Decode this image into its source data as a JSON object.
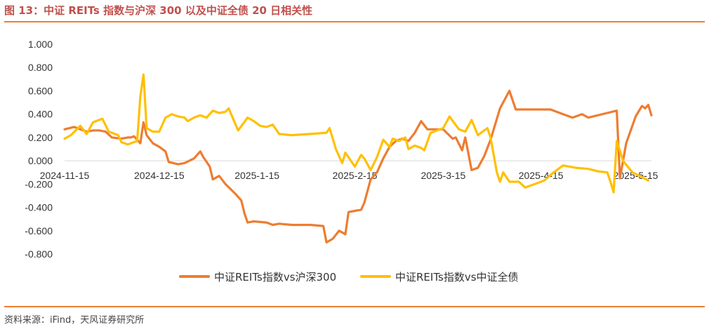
{
  "figure": {
    "title": "图 13：中证 REITs 指数与沪深 300 以及中证全债 20 日相关性",
    "source": "资料来源：iFind，天风证券研究所"
  },
  "colors": {
    "accent": "#ed7d31",
    "series1": "#ed7d31",
    "series2": "#ffc000",
    "title": "#c0504d"
  },
  "chart_data": {
    "type": "line",
    "title": "",
    "xlabel": "",
    "ylabel": "",
    "ylim": [
      -0.8,
      1.0
    ],
    "yticks": [
      "1.000",
      "0.800",
      "0.600",
      "0.400",
      "0.200",
      "0.000",
      "-0.200",
      "-0.400",
      "-0.600",
      "-0.800"
    ],
    "x_range": [
      "2024-11-15",
      "2025-05-20"
    ],
    "xticks": [
      "2024-11-15",
      "2024-12-15",
      "2025-1-15",
      "2025-2-15",
      "2025-3-15",
      "2025-4-15",
      "2025-5-15"
    ],
    "grid": false,
    "legend": "bottom",
    "series": [
      {
        "name": "中证REITs指数vs沪深300",
        "color": "#ed7d31",
        "points": [
          [
            "2024-11-15",
            0.27
          ],
          [
            "2024-11-18",
            0.29
          ],
          [
            "2024-11-20",
            0.27
          ],
          [
            "2024-11-22",
            0.25
          ],
          [
            "2024-11-24",
            0.26
          ],
          [
            "2024-11-26",
            0.26
          ],
          [
            "2024-11-28",
            0.25
          ],
          [
            "2024-11-30",
            0.2
          ],
          [
            "2024-12-03",
            0.19
          ],
          [
            "2024-12-05",
            0.2
          ],
          [
            "2024-12-06",
            0.2
          ],
          [
            "2024-12-07",
            0.21
          ],
          [
            "2024-12-09",
            0.15
          ],
          [
            "2024-12-10",
            0.33
          ],
          [
            "2024-12-11",
            0.22
          ],
          [
            "2024-12-13",
            0.15
          ],
          [
            "2024-12-15",
            0.12
          ],
          [
            "2024-12-17",
            0.08
          ],
          [
            "2024-12-18",
            -0.01
          ],
          [
            "2024-12-21",
            -0.03
          ],
          [
            "2024-12-23",
            -0.02
          ],
          [
            "2024-12-26",
            0.02
          ],
          [
            "2024-12-28",
            0.08
          ],
          [
            "2024-12-29",
            0.03
          ],
          [
            "2024-12-31",
            -0.05
          ],
          [
            "2025-01-01",
            -0.16
          ],
          [
            "2025-01-03",
            -0.13
          ],
          [
            "2025-01-05",
            -0.2
          ],
          [
            "2025-01-08",
            -0.28
          ],
          [
            "2025-01-10",
            -0.34
          ],
          [
            "2025-01-11",
            -0.45
          ],
          [
            "2025-01-12",
            -0.53
          ],
          [
            "2025-01-14",
            -0.52
          ],
          [
            "2025-01-18",
            -0.53
          ],
          [
            "2025-01-20",
            -0.55
          ],
          [
            "2025-01-22",
            -0.54
          ],
          [
            "2025-01-26",
            -0.55
          ],
          [
            "2025-02-01",
            -0.55
          ],
          [
            "2025-02-05",
            -0.56
          ],
          [
            "2025-02-06",
            -0.7
          ],
          [
            "2025-02-08",
            -0.67
          ],
          [
            "2025-02-10",
            -0.6
          ],
          [
            "2025-02-12",
            -0.63
          ],
          [
            "2025-02-13",
            -0.44
          ],
          [
            "2025-02-15",
            -0.43
          ],
          [
            "2025-02-17",
            -0.42
          ],
          [
            "2025-02-18",
            -0.36
          ],
          [
            "2025-02-20",
            -0.16
          ],
          [
            "2025-02-22",
            -0.1
          ],
          [
            "2025-02-24",
            0.02
          ],
          [
            "2025-02-26",
            0.12
          ],
          [
            "2025-02-28",
            0.17
          ],
          [
            "2025-03-02",
            0.19
          ],
          [
            "2025-03-04",
            0.17
          ],
          [
            "2025-03-06",
            0.24
          ],
          [
            "2025-03-08",
            0.34
          ],
          [
            "2025-03-10",
            0.27
          ],
          [
            "2025-03-15",
            0.27
          ],
          [
            "2025-03-18",
            0.19
          ],
          [
            "2025-03-19",
            0.2
          ],
          [
            "2025-03-21",
            0.09
          ],
          [
            "2025-03-22",
            0.2
          ],
          [
            "2025-03-24",
            -0.08
          ],
          [
            "2025-03-26",
            -0.06
          ],
          [
            "2025-03-28",
            0.04
          ],
          [
            "2025-03-30",
            0.18
          ],
          [
            "2025-04-02",
            0.45
          ],
          [
            "2025-04-05",
            0.6
          ],
          [
            "2025-04-07",
            0.44
          ],
          [
            "2025-04-10",
            0.44
          ],
          [
            "2025-04-18",
            0.44
          ],
          [
            "2025-04-22",
            0.4
          ],
          [
            "2025-04-25",
            0.37
          ],
          [
            "2025-04-28",
            0.4
          ],
          [
            "2025-04-30",
            0.37
          ],
          [
            "2025-05-06",
            0.41
          ],
          [
            "2025-05-09",
            0.43
          ],
          [
            "2025-05-10",
            -0.15
          ],
          [
            "2025-05-12",
            0.15
          ],
          [
            "2025-05-15",
            0.38
          ],
          [
            "2025-05-17",
            0.47
          ],
          [
            "2025-05-18",
            0.45
          ],
          [
            "2025-05-19",
            0.48
          ],
          [
            "2025-05-20",
            0.39
          ]
        ]
      },
      {
        "name": "中证REITs指数vs中证全债",
        "color": "#ffc000",
        "points": [
          [
            "2024-11-15",
            0.19
          ],
          [
            "2024-11-17",
            0.22
          ],
          [
            "2024-11-20",
            0.3
          ],
          [
            "2024-11-22",
            0.23
          ],
          [
            "2024-11-24",
            0.33
          ],
          [
            "2024-11-27",
            0.36
          ],
          [
            "2024-11-29",
            0.25
          ],
          [
            "2024-12-02",
            0.22
          ],
          [
            "2024-12-03",
            0.16
          ],
          [
            "2024-12-05",
            0.14
          ],
          [
            "2024-12-08",
            0.17
          ],
          [
            "2024-12-09",
            0.55
          ],
          [
            "2024-12-10",
            0.74
          ],
          [
            "2024-12-11",
            0.28
          ],
          [
            "2024-12-13",
            0.25
          ],
          [
            "2024-12-15",
            0.25
          ],
          [
            "2024-12-17",
            0.37
          ],
          [
            "2024-12-19",
            0.4
          ],
          [
            "2024-12-21",
            0.38
          ],
          [
            "2024-12-23",
            0.37
          ],
          [
            "2024-12-24",
            0.34
          ],
          [
            "2024-12-26",
            0.37
          ],
          [
            "2024-12-28",
            0.39
          ],
          [
            "2024-12-30",
            0.37
          ],
          [
            "2025-01-01",
            0.43
          ],
          [
            "2025-01-03",
            0.41
          ],
          [
            "2025-01-05",
            0.42
          ],
          [
            "2025-01-06",
            0.45
          ],
          [
            "2025-01-09",
            0.26
          ],
          [
            "2025-01-12",
            0.37
          ],
          [
            "2025-01-14",
            0.34
          ],
          [
            "2025-01-16",
            0.3
          ],
          [
            "2025-01-18",
            0.29
          ],
          [
            "2025-01-20",
            0.31
          ],
          [
            "2025-01-22",
            0.23
          ],
          [
            "2025-01-26",
            0.22
          ],
          [
            "2025-02-01",
            0.23
          ],
          [
            "2025-02-06",
            0.24
          ],
          [
            "2025-02-07",
            0.28
          ],
          [
            "2025-02-09",
            0.1
          ],
          [
            "2025-02-11",
            -0.02
          ],
          [
            "2025-02-12",
            0.07
          ],
          [
            "2025-02-13",
            0.03
          ],
          [
            "2025-02-15",
            -0.05
          ],
          [
            "2025-02-17",
            0.05
          ],
          [
            "2025-02-18",
            0.02
          ],
          [
            "2025-02-20",
            -0.08
          ],
          [
            "2025-02-22",
            0.03
          ],
          [
            "2025-02-24",
            0.18
          ],
          [
            "2025-02-26",
            0.12
          ],
          [
            "2025-02-27",
            0.19
          ],
          [
            "2025-03-01",
            0.17
          ],
          [
            "2025-03-03",
            0.2
          ],
          [
            "2025-03-04",
            0.1
          ],
          [
            "2025-03-06",
            0.13
          ],
          [
            "2025-03-08",
            0.11
          ],
          [
            "2025-03-09",
            0.09
          ],
          [
            "2025-03-11",
            0.24
          ],
          [
            "2025-03-15",
            0.28
          ],
          [
            "2025-03-17",
            0.38
          ],
          [
            "2025-03-20",
            0.27
          ],
          [
            "2025-03-22",
            0.25
          ],
          [
            "2025-03-24",
            0.35
          ],
          [
            "2025-03-26",
            0.22
          ],
          [
            "2025-03-29",
            0.28
          ],
          [
            "2025-03-30",
            0.2
          ],
          [
            "2025-04-01",
            -0.1
          ],
          [
            "2025-04-02",
            -0.18
          ],
          [
            "2025-04-03",
            -0.1
          ],
          [
            "2025-04-05",
            -0.18
          ],
          [
            "2025-04-08",
            -0.18
          ],
          [
            "2025-04-10",
            -0.23
          ],
          [
            "2025-04-13",
            -0.2
          ],
          [
            "2025-04-16",
            -0.17
          ],
          [
            "2025-04-19",
            -0.1
          ],
          [
            "2025-04-22",
            -0.04
          ],
          [
            "2025-04-26",
            -0.06
          ],
          [
            "2025-04-30",
            -0.07
          ],
          [
            "2025-05-03",
            -0.09
          ],
          [
            "2025-05-06",
            -0.1
          ],
          [
            "2025-05-07",
            -0.18
          ],
          [
            "2025-05-08",
            -0.27
          ],
          [
            "2025-05-09",
            0.17
          ],
          [
            "2025-05-11",
            0.0
          ],
          [
            "2025-05-14",
            -0.1
          ],
          [
            "2025-05-17",
            -0.14
          ],
          [
            "2025-05-19",
            -0.17
          ]
        ]
      }
    ]
  }
}
